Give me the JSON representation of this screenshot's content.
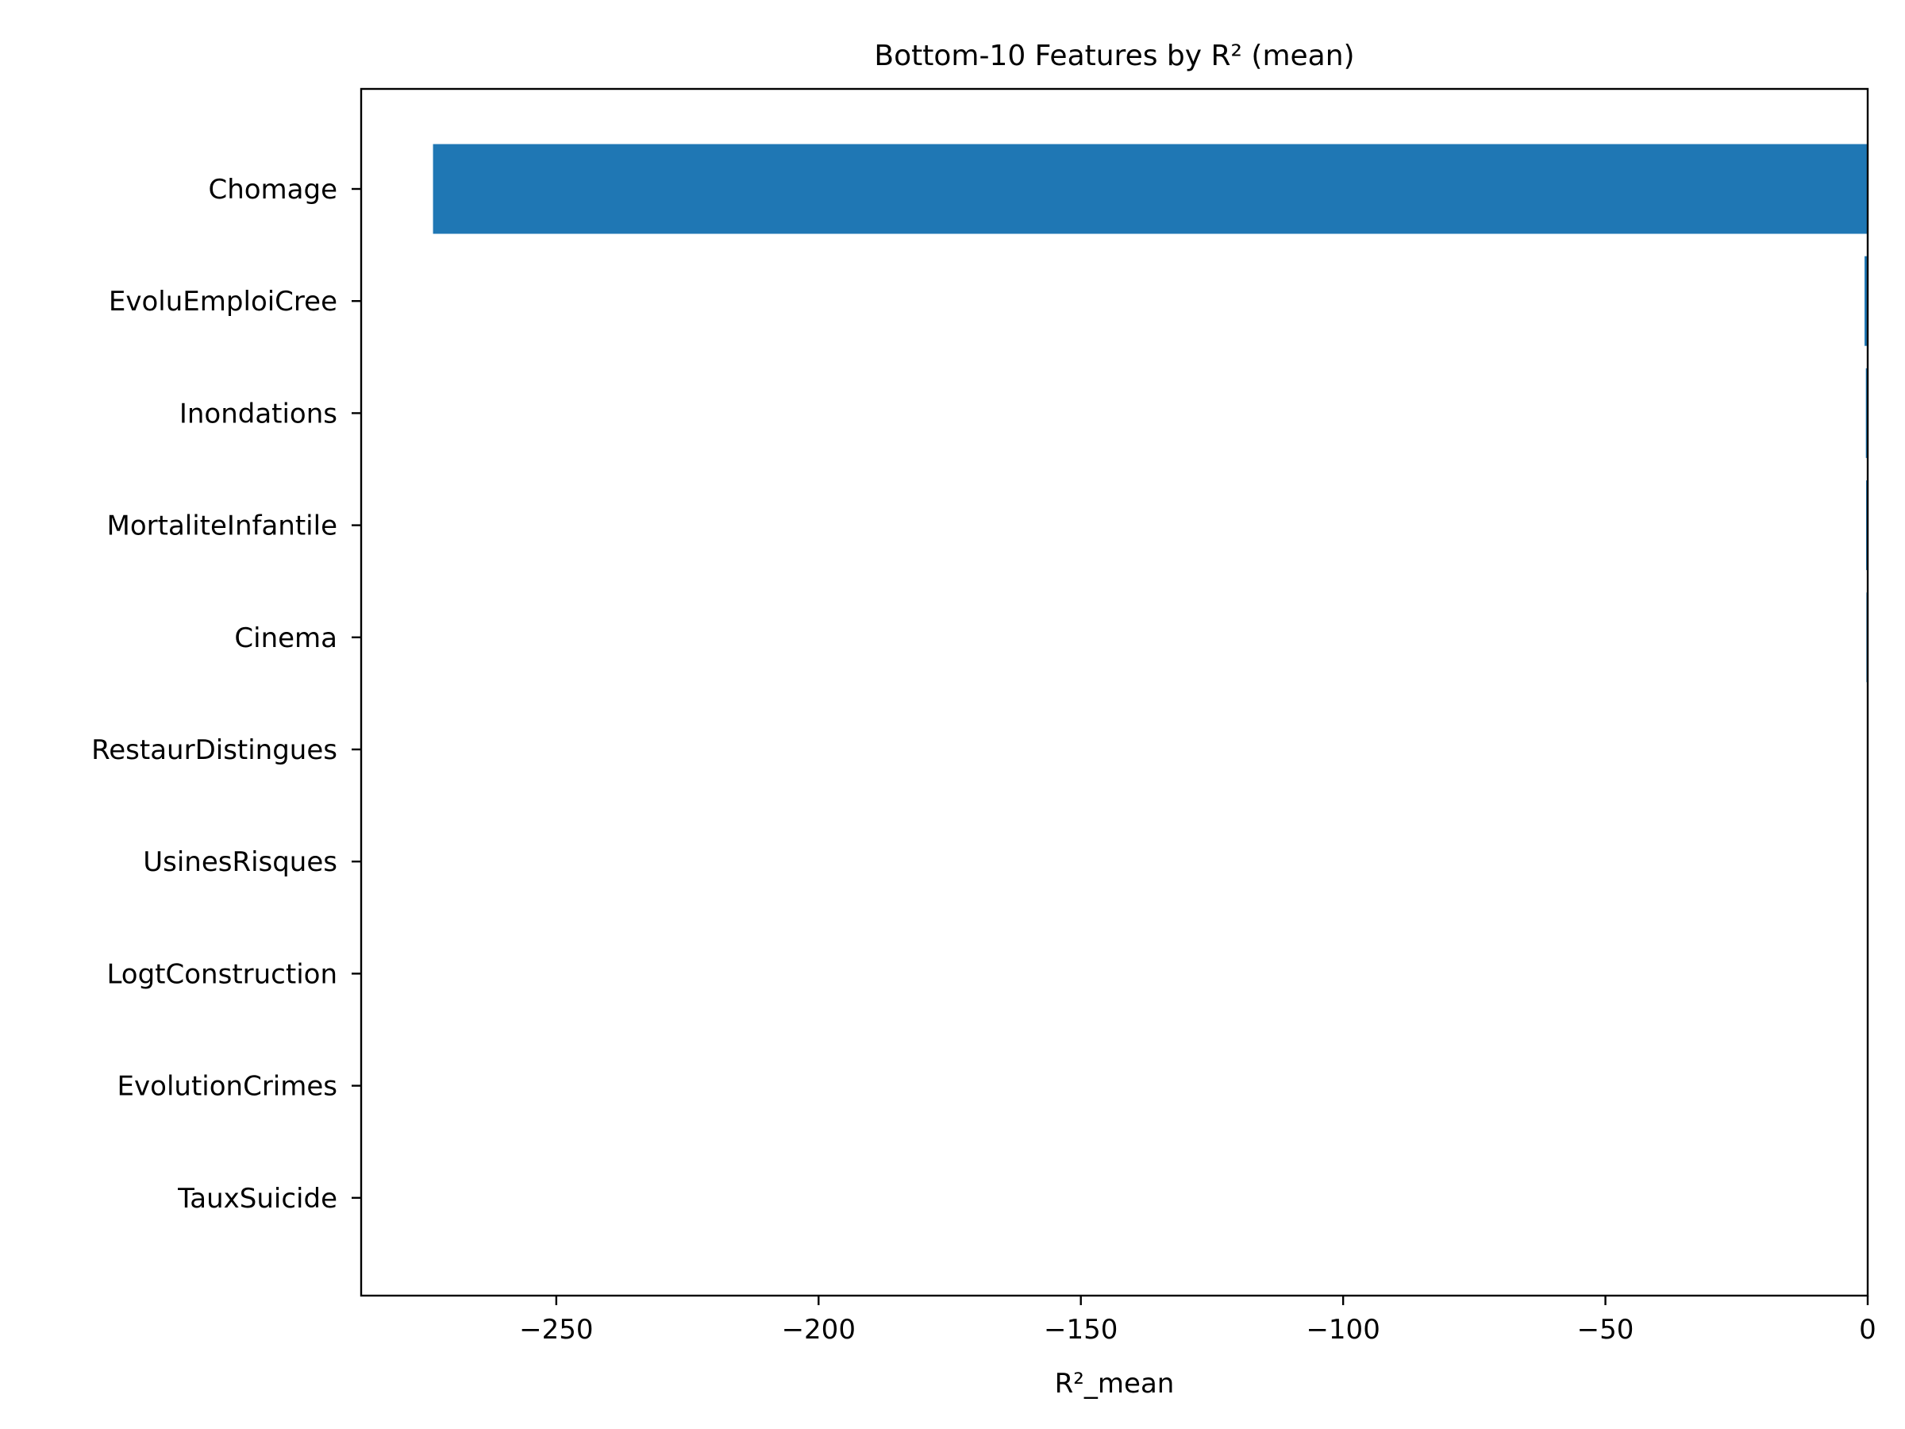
{
  "chart_data": {
    "type": "bar",
    "orientation": "horizontal",
    "title": "Bottom-10 Features by R² (mean)",
    "xlabel": "R²_mean",
    "ylabel": "",
    "categories": [
      "Chomage",
      "EvoluEmploiCree",
      "Inondations",
      "MortaliteInfantile",
      "Cinema",
      "RestaurDistingues",
      "UsinesRisques",
      "LogtConstruction",
      "EvolutionCrimes",
      "TauxSuicide"
    ],
    "values": [
      -273.5,
      -0.6,
      -0.35,
      -0.3,
      -0.25,
      -0.05,
      -0.04,
      -0.03,
      -0.02,
      -0.01
    ],
    "xlim": [
      -287.2,
      0
    ],
    "xticks": [
      -250,
      -200,
      -150,
      -100,
      -50,
      0
    ],
    "xtick_labels": [
      "−250",
      "−200",
      "−150",
      "−100",
      "−50",
      "0"
    ],
    "bar_color": "#1f77b4",
    "grid": false,
    "legend": "none"
  }
}
